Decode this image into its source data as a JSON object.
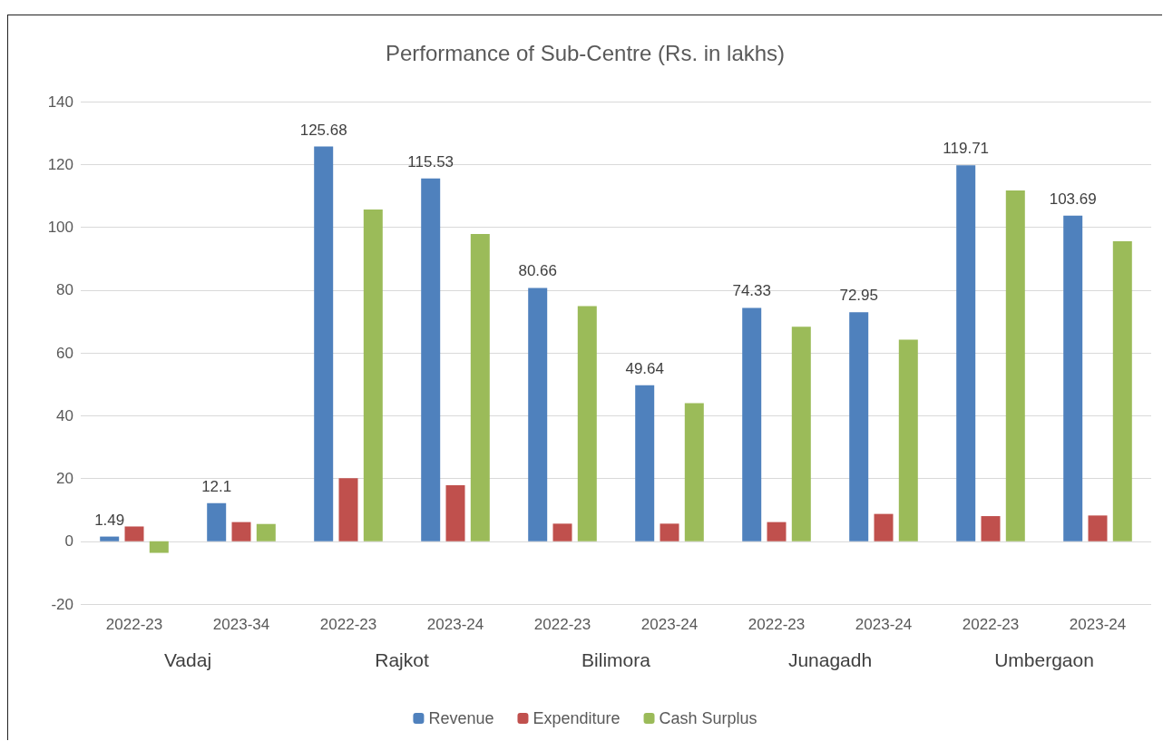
{
  "chart_data": {
    "type": "bar",
    "title": "Performance of Sub-Centre (Rs. in lakhs)",
    "categories": [
      "2022-23",
      "2023-34",
      "2022-23",
      "2023-24",
      "2022-23",
      "2023-24",
      "2022-23",
      "2023-24",
      "2022-23",
      "2023-24"
    ],
    "series": [
      {
        "name": "Revenue",
        "color": "#4f81bd",
        "values": [
          1.49,
          12.1,
          125.68,
          115.53,
          80.66,
          49.64,
          74.33,
          72.95,
          119.71,
          103.69
        ],
        "value_labels": [
          "1.49",
          "12.1",
          "125.68",
          "115.53",
          "80.66",
          "49.64",
          "74.33",
          "72.95",
          "119.71",
          "103.69"
        ]
      },
      {
        "name": "Expenditure",
        "color": "#c0504d",
        "values": [
          4.7,
          6.1,
          20.1,
          17.8,
          5.6,
          5.6,
          6.1,
          8.7,
          8.0,
          8.2
        ]
      },
      {
        "name": "Cash Surplus",
        "color": "#9bbb59",
        "values": [
          -3.7,
          5.5,
          105.6,
          97.8,
          74.9,
          44.0,
          68.3,
          64.2,
          111.7,
          95.5
        ]
      }
    ],
    "annotations": [
      "Vadaj",
      "Rajkot",
      "Bilimora",
      "Junagadh",
      "Umbergaon"
    ],
    "ylim": [
      -20,
      140
    ],
    "yticks": [
      -20,
      0,
      20,
      40,
      60,
      80,
      100,
      120,
      140
    ],
    "grid": "y",
    "legend": "bottom"
  }
}
